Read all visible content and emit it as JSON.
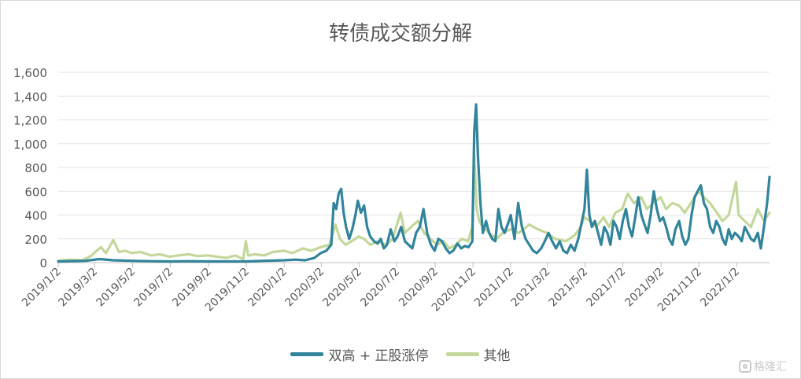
{
  "chart_data": {
    "type": "line",
    "title": "转债成交额分解",
    "xlabel": "",
    "ylabel": "",
    "ylim": [
      0,
      1600
    ],
    "y_ticks": [
      "0",
      "200",
      "400",
      "600",
      "800",
      "1,000",
      "1,200",
      "1,400",
      "1,600"
    ],
    "y_tick_values": [
      0,
      200,
      400,
      600,
      800,
      1000,
      1200,
      1400,
      1600
    ],
    "x_tick_labels": [
      "2019/1/2",
      "2019/3/2",
      "2019/5/2",
      "2019/7/2",
      "2019/9/2",
      "2019/11/2",
      "2020/1/2",
      "2020/3/2",
      "2020/5/2",
      "2020/7/2",
      "2020/9/2",
      "2020/11/2",
      "2021/1/2",
      "2021/3/2",
      "2021/5/2",
      "2021/7/2",
      "2021/9/2",
      "2021/11/2",
      "2022/1/2"
    ],
    "grid": "horizontal",
    "legend_position": "bottom",
    "series": [
      {
        "name": "双高 + 正股涨停",
        "color": "#31849B",
        "points": [
          [
            "2019-01-02",
            10
          ],
          [
            "2019-02-15",
            15
          ],
          [
            "2019-03-10",
            30
          ],
          [
            "2019-04-01",
            20
          ],
          [
            "2019-05-01",
            15
          ],
          [
            "2019-06-01",
            12
          ],
          [
            "2019-07-01",
            10
          ],
          [
            "2019-08-01",
            12
          ],
          [
            "2019-09-01",
            10
          ],
          [
            "2019-10-01",
            10
          ],
          [
            "2019-11-01",
            10
          ],
          [
            "2019-12-01",
            15
          ],
          [
            "2020-01-02",
            20
          ],
          [
            "2020-01-20",
            25
          ],
          [
            "2020-02-05",
            20
          ],
          [
            "2020-02-20",
            40
          ],
          [
            "2020-03-01",
            80
          ],
          [
            "2020-03-10",
            100
          ],
          [
            "2020-03-18",
            150
          ],
          [
            "2020-03-22",
            500
          ],
          [
            "2020-03-26",
            450
          ],
          [
            "2020-03-30",
            580
          ],
          [
            "2020-04-03",
            620
          ],
          [
            "2020-04-07",
            420
          ],
          [
            "2020-04-11",
            300
          ],
          [
            "2020-04-16",
            200
          ],
          [
            "2020-04-21",
            280
          ],
          [
            "2020-04-26",
            400
          ],
          [
            "2020-04-30",
            520
          ],
          [
            "2020-05-05",
            420
          ],
          [
            "2020-05-10",
            480
          ],
          [
            "2020-05-15",
            300
          ],
          [
            "2020-05-20",
            220
          ],
          [
            "2020-05-26",
            180
          ],
          [
            "2020-06-01",
            160
          ],
          [
            "2020-06-06",
            200
          ],
          [
            "2020-06-11",
            120
          ],
          [
            "2020-06-16",
            150
          ],
          [
            "2020-06-22",
            280
          ],
          [
            "2020-06-28",
            180
          ],
          [
            "2020-07-03",
            220
          ],
          [
            "2020-07-09",
            300
          ],
          [
            "2020-07-15",
            180
          ],
          [
            "2020-07-21",
            150
          ],
          [
            "2020-07-27",
            120
          ],
          [
            "2020-08-02",
            250
          ],
          [
            "2020-08-08",
            300
          ],
          [
            "2020-08-14",
            450
          ],
          [
            "2020-08-20",
            250
          ],
          [
            "2020-08-26",
            150
          ],
          [
            "2020-09-01",
            100
          ],
          [
            "2020-09-07",
            200
          ],
          [
            "2020-09-13",
            180
          ],
          [
            "2020-09-19",
            120
          ],
          [
            "2020-09-25",
            80
          ],
          [
            "2020-10-01",
            100
          ],
          [
            "2020-10-08",
            160
          ],
          [
            "2020-10-14",
            120
          ],
          [
            "2020-10-20",
            140
          ],
          [
            "2020-10-26",
            130
          ],
          [
            "2020-11-01",
            180
          ],
          [
            "2020-11-04",
            1100
          ],
          [
            "2020-11-07",
            1330
          ],
          [
            "2020-11-10",
            900
          ],
          [
            "2020-11-14",
            500
          ],
          [
            "2020-11-18",
            250
          ],
          [
            "2020-11-23",
            350
          ],
          [
            "2020-11-28",
            250
          ],
          [
            "2020-12-03",
            200
          ],
          [
            "2020-12-08",
            180
          ],
          [
            "2020-12-13",
            450
          ],
          [
            "2020-12-18",
            300
          ],
          [
            "2020-12-23",
            250
          ],
          [
            "2020-12-28",
            320
          ],
          [
            "2021-01-02",
            400
          ],
          [
            "2021-01-08",
            200
          ],
          [
            "2021-01-14",
            500
          ],
          [
            "2021-01-20",
            300
          ],
          [
            "2021-01-26",
            200
          ],
          [
            "2021-02-01",
            150
          ],
          [
            "2021-02-07",
            100
          ],
          [
            "2021-02-13",
            80
          ],
          [
            "2021-02-20",
            120
          ],
          [
            "2021-02-26",
            180
          ],
          [
            "2021-03-04",
            250
          ],
          [
            "2021-03-10",
            180
          ],
          [
            "2021-03-16",
            120
          ],
          [
            "2021-03-22",
            180
          ],
          [
            "2021-03-28",
            100
          ],
          [
            "2021-04-03",
            80
          ],
          [
            "2021-04-09",
            150
          ],
          [
            "2021-04-15",
            100
          ],
          [
            "2021-04-21",
            200
          ],
          [
            "2021-04-27",
            350
          ],
          [
            "2021-05-01",
            450
          ],
          [
            "2021-05-05",
            780
          ],
          [
            "2021-05-09",
            400
          ],
          [
            "2021-05-13",
            300
          ],
          [
            "2021-05-18",
            350
          ],
          [
            "2021-05-23",
            250
          ],
          [
            "2021-05-28",
            150
          ],
          [
            "2021-06-02",
            300
          ],
          [
            "2021-06-07",
            250
          ],
          [
            "2021-06-12",
            150
          ],
          [
            "2021-06-17",
            350
          ],
          [
            "2021-06-22",
            300
          ],
          [
            "2021-06-27",
            200
          ],
          [
            "2021-07-02",
            350
          ],
          [
            "2021-07-07",
            450
          ],
          [
            "2021-07-12",
            300
          ],
          [
            "2021-07-17",
            220
          ],
          [
            "2021-07-22",
            380
          ],
          [
            "2021-07-27",
            550
          ],
          [
            "2021-08-01",
            400
          ],
          [
            "2021-08-06",
            320
          ],
          [
            "2021-08-11",
            250
          ],
          [
            "2021-08-16",
            400
          ],
          [
            "2021-08-21",
            600
          ],
          [
            "2021-08-26",
            450
          ],
          [
            "2021-08-31",
            350
          ],
          [
            "2021-09-05",
            380
          ],
          [
            "2021-09-10",
            300
          ],
          [
            "2021-09-15",
            200
          ],
          [
            "2021-09-20",
            150
          ],
          [
            "2021-09-25",
            280
          ],
          [
            "2021-10-01",
            350
          ],
          [
            "2021-10-06",
            220
          ],
          [
            "2021-10-11",
            150
          ],
          [
            "2021-10-16",
            200
          ],
          [
            "2021-10-21",
            400
          ],
          [
            "2021-10-26",
            550
          ],
          [
            "2021-10-31",
            600
          ],
          [
            "2021-11-05",
            650
          ],
          [
            "2021-11-10",
            500
          ],
          [
            "2021-11-15",
            450
          ],
          [
            "2021-11-20",
            300
          ],
          [
            "2021-11-25",
            250
          ],
          [
            "2021-11-30",
            350
          ],
          [
            "2021-12-05",
            300
          ],
          [
            "2021-12-10",
            200
          ],
          [
            "2021-12-15",
            150
          ],
          [
            "2021-12-20",
            280
          ],
          [
            "2021-12-25",
            200
          ],
          [
            "2021-12-30",
            250
          ],
          [
            "2022-01-05",
            220
          ],
          [
            "2022-01-10",
            180
          ],
          [
            "2022-01-15",
            300
          ],
          [
            "2022-01-20",
            250
          ],
          [
            "2022-01-25",
            200
          ],
          [
            "2022-01-30",
            180
          ],
          [
            "2022-02-05",
            250
          ],
          [
            "2022-02-10",
            120
          ],
          [
            "2022-02-15",
            300
          ],
          [
            "2022-02-20",
            500
          ],
          [
            "2022-02-24",
            720
          ]
        ]
      },
      {
        "name": "其他",
        "color": "#C4D79B",
        "points": [
          [
            "2019-01-02",
            15
          ],
          [
            "2019-01-20",
            25
          ],
          [
            "2019-02-10",
            20
          ],
          [
            "2019-02-25",
            60
          ],
          [
            "2019-03-05",
            100
          ],
          [
            "2019-03-12",
            130
          ],
          [
            "2019-03-20",
            80
          ],
          [
            "2019-04-01",
            190
          ],
          [
            "2019-04-10",
            90
          ],
          [
            "2019-04-20",
            100
          ],
          [
            "2019-05-01",
            80
          ],
          [
            "2019-05-15",
            90
          ],
          [
            "2019-06-01",
            60
          ],
          [
            "2019-06-15",
            70
          ],
          [
            "2019-07-01",
            50
          ],
          [
            "2019-07-15",
            60
          ],
          [
            "2019-08-01",
            70
          ],
          [
            "2019-08-15",
            55
          ],
          [
            "2019-09-01",
            60
          ],
          [
            "2019-09-15",
            50
          ],
          [
            "2019-10-01",
            40
          ],
          [
            "2019-10-15",
            60
          ],
          [
            "2019-10-28",
            30
          ],
          [
            "2019-11-01",
            180
          ],
          [
            "2019-11-05",
            60
          ],
          [
            "2019-11-15",
            70
          ],
          [
            "2019-12-01",
            60
          ],
          [
            "2019-12-15",
            90
          ],
          [
            "2020-01-02",
            100
          ],
          [
            "2020-01-15",
            80
          ],
          [
            "2020-02-01",
            120
          ],
          [
            "2020-02-15",
            100
          ],
          [
            "2020-03-01",
            130
          ],
          [
            "2020-03-15",
            150
          ],
          [
            "2020-03-25",
            320
          ],
          [
            "2020-04-01",
            200
          ],
          [
            "2020-04-10",
            150
          ],
          [
            "2020-04-20",
            180
          ],
          [
            "2020-05-01",
            220
          ],
          [
            "2020-05-10",
            200
          ],
          [
            "2020-05-20",
            150
          ],
          [
            "2020-06-01",
            180
          ],
          [
            "2020-06-15",
            150
          ],
          [
            "2020-06-25",
            200
          ],
          [
            "2020-07-01",
            300
          ],
          [
            "2020-07-08",
            420
          ],
          [
            "2020-07-15",
            250
          ],
          [
            "2020-07-25",
            300
          ],
          [
            "2020-08-05",
            350
          ],
          [
            "2020-08-15",
            250
          ],
          [
            "2020-08-25",
            200
          ],
          [
            "2020-09-05",
            150
          ],
          [
            "2020-09-15",
            180
          ],
          [
            "2020-09-25",
            120
          ],
          [
            "2020-10-05",
            150
          ],
          [
            "2020-10-15",
            200
          ],
          [
            "2020-10-25",
            180
          ],
          [
            "2020-11-01",
            300
          ],
          [
            "2020-11-04",
            900
          ],
          [
            "2020-11-08",
            450
          ],
          [
            "2020-11-12",
            350
          ],
          [
            "2020-11-18",
            300
          ],
          [
            "2020-11-28",
            250
          ],
          [
            "2020-12-10",
            200
          ],
          [
            "2020-12-20",
            250
          ],
          [
            "2021-01-02",
            280
          ],
          [
            "2021-01-15",
            250
          ],
          [
            "2021-02-01",
            320
          ],
          [
            "2021-02-15",
            280
          ],
          [
            "2021-03-01",
            250
          ],
          [
            "2021-03-15",
            200
          ],
          [
            "2021-04-01",
            180
          ],
          [
            "2021-04-15",
            230
          ],
          [
            "2021-04-25",
            300
          ],
          [
            "2021-05-01",
            380
          ],
          [
            "2021-05-10",
            350
          ],
          [
            "2021-05-20",
            300
          ],
          [
            "2021-06-01",
            380
          ],
          [
            "2021-06-10",
            300
          ],
          [
            "2021-06-20",
            420
          ],
          [
            "2021-07-01",
            450
          ],
          [
            "2021-07-10",
            580
          ],
          [
            "2021-07-20",
            500
          ],
          [
            "2021-08-01",
            550
          ],
          [
            "2021-08-10",
            450
          ],
          [
            "2021-08-20",
            500
          ],
          [
            "2021-09-01",
            550
          ],
          [
            "2021-09-10",
            450
          ],
          [
            "2021-09-20",
            500
          ],
          [
            "2021-10-01",
            480
          ],
          [
            "2021-10-10",
            420
          ],
          [
            "2021-10-20",
            500
          ],
          [
            "2021-11-01",
            600
          ],
          [
            "2021-11-10",
            550
          ],
          [
            "2021-11-20",
            500
          ],
          [
            "2021-12-01",
            420
          ],
          [
            "2021-12-10",
            350
          ],
          [
            "2021-12-20",
            400
          ],
          [
            "2022-01-01",
            680
          ],
          [
            "2022-01-05",
            400
          ],
          [
            "2022-01-15",
            350
          ],
          [
            "2022-01-25",
            300
          ],
          [
            "2022-02-05",
            450
          ],
          [
            "2022-02-15",
            350
          ],
          [
            "2022-02-24",
            420
          ]
        ]
      }
    ]
  },
  "legend": {
    "item1_label": "双高 + 正股涨停",
    "item2_label": "其他",
    "item1_color": "#31849B",
    "item2_color": "#C4D79B"
  },
  "watermark": {
    "label": "格隆汇"
  }
}
